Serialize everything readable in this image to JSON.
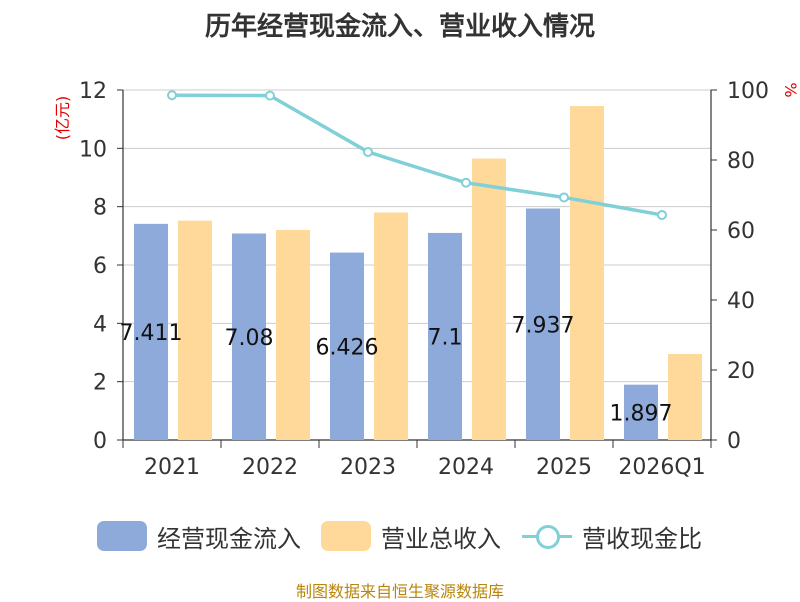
{
  "title": "历年经营现金流入、营业收入情况",
  "source": "制图数据来自恒生聚源数据库",
  "chart_data": {
    "type": "bar",
    "categories": [
      "2021",
      "2022",
      "2023",
      "2024",
      "2025",
      "2026Q1"
    ],
    "series": [
      {
        "name": "经营现金流入",
        "type": "bar",
        "axis": "left",
        "color": "#8eaadb",
        "values": [
          7.411,
          7.08,
          6.426,
          7.1,
          7.937,
          1.897
        ],
        "labels": [
          "7.411",
          "7.08",
          "6.426",
          "7.1",
          "7.937",
          "1.897"
        ]
      },
      {
        "name": "营业总收入",
        "type": "bar",
        "axis": "left",
        "color": "#ffd999",
        "values": [
          7.52,
          7.2,
          7.8,
          9.65,
          11.45,
          2.95
        ]
      },
      {
        "name": "营收现金比",
        "type": "line",
        "axis": "right",
        "color": "#80d0d8",
        "values": [
          98.5,
          98.4,
          82.3,
          73.5,
          69.3,
          64.3
        ]
      }
    ],
    "y_left": {
      "label": "(亿元)",
      "min": 0,
      "max": 12,
      "ticks": [
        0,
        2,
        4,
        6,
        8,
        10,
        12
      ]
    },
    "y_right": {
      "label": "%",
      "min": 0,
      "max": 100,
      "ticks": [
        0,
        20,
        40,
        60,
        80,
        100
      ]
    },
    "grid": true,
    "legend_position": "bottom"
  }
}
